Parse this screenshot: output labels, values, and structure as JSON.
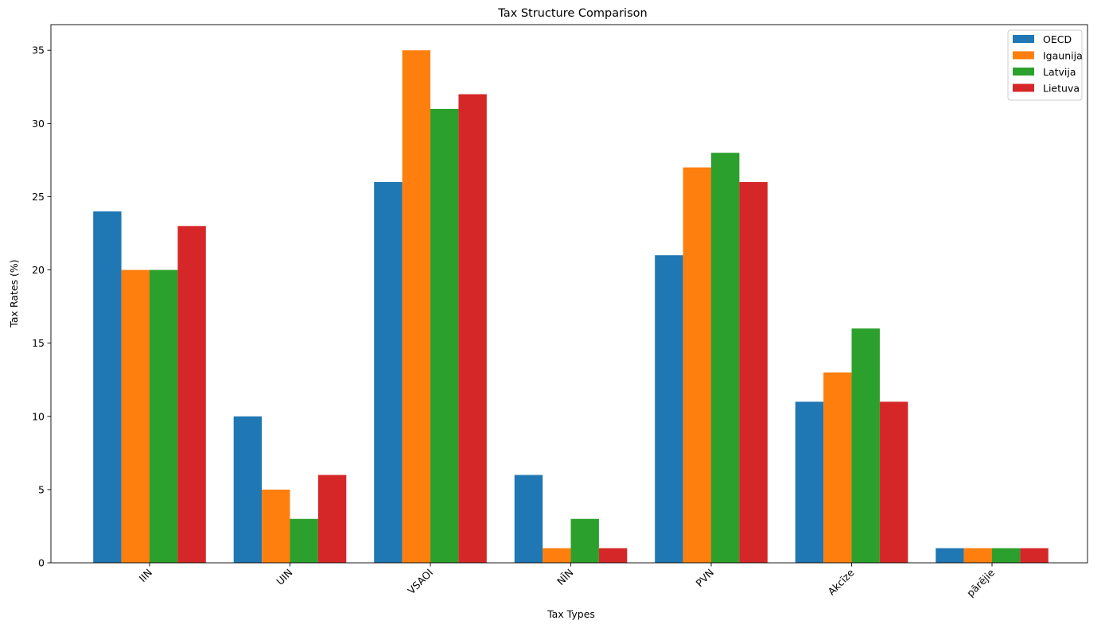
{
  "chart_data": {
    "type": "bar",
    "title": "Tax Structure Comparison",
    "xlabel": "Tax Types",
    "ylabel": "Tax Rates (%)",
    "categories": [
      "IIN",
      "UIN",
      "VSAOI",
      "NĪN",
      "PVN",
      "Akcīze",
      "pārējie"
    ],
    "series": [
      {
        "name": "OECD",
        "color": "#1f77b4",
        "values": [
          24,
          10,
          26,
          6,
          21,
          11,
          1
        ]
      },
      {
        "name": "Igaunija",
        "color": "#ff7f0e",
        "values": [
          20,
          5,
          35,
          1,
          27,
          13,
          1
        ]
      },
      {
        "name": "Latvija",
        "color": "#2ca02c",
        "values": [
          20,
          3,
          31,
          3,
          28,
          16,
          1
        ]
      },
      {
        "name": "Lietuva",
        "color": "#d62728",
        "values": [
          23,
          6,
          32,
          1,
          26,
          11,
          1
        ]
      }
    ],
    "yticks": [
      0,
      5,
      10,
      15,
      20,
      25,
      30,
      35
    ],
    "ylim": [
      0,
      36.75
    ],
    "xtick_rotation": 45,
    "grid": false,
    "legend_position": "top-right"
  }
}
